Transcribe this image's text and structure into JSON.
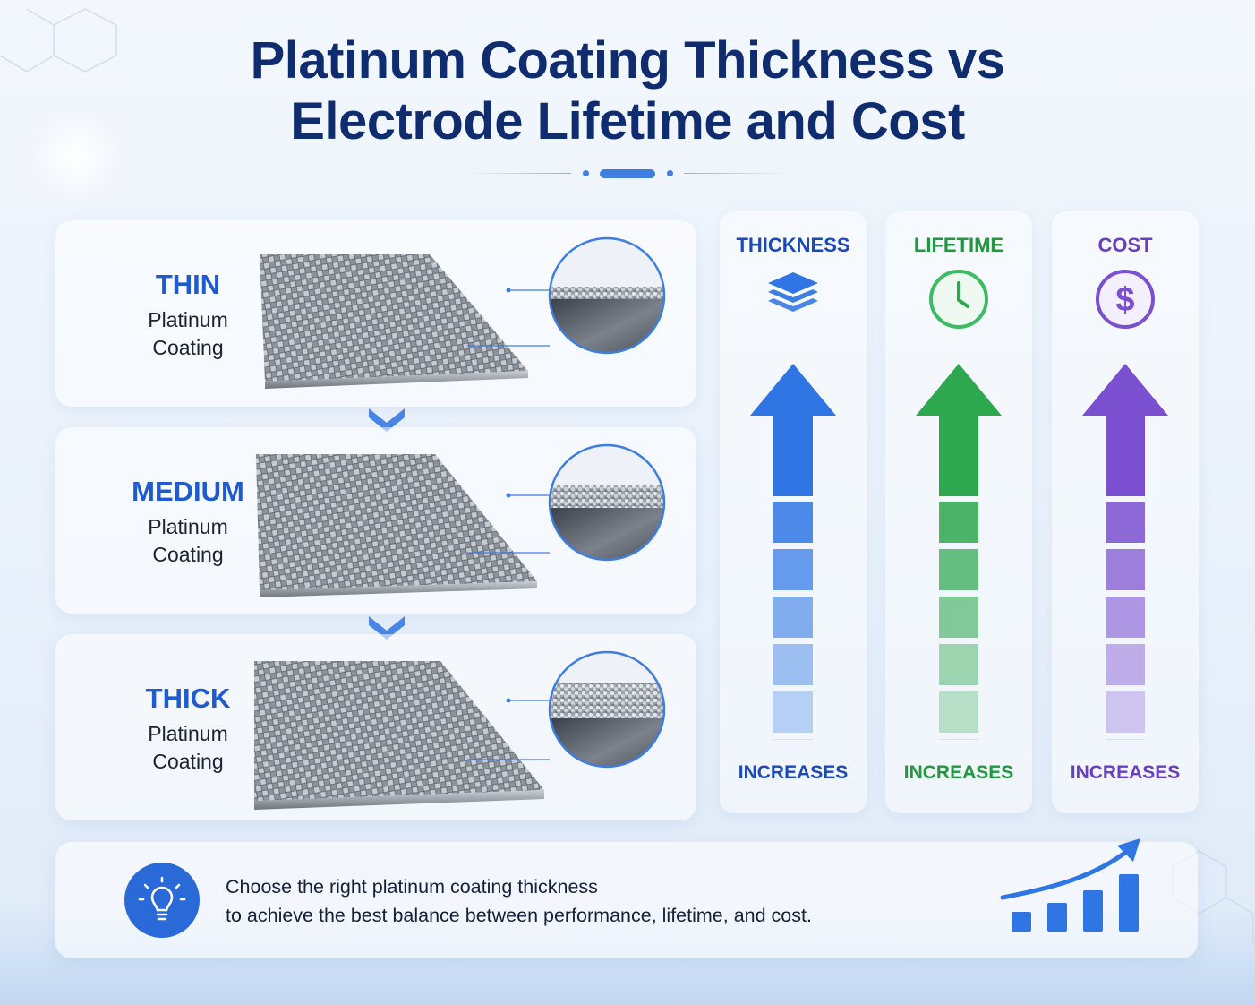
{
  "title_line1": "Platinum Coating Thickness vs",
  "title_line2": "Electrode Lifetime and Cost",
  "levels": [
    {
      "name": "THIN",
      "sub1": "Platinum",
      "sub2": "Coating",
      "coating_level": 1
    },
    {
      "name": "MEDIUM",
      "sub1": "Platinum",
      "sub2": "Coating",
      "coating_level": 2
    },
    {
      "name": "THICK",
      "sub1": "Platinum",
      "sub2": "Coating",
      "coating_level": 3
    }
  ],
  "metrics": [
    {
      "label": "THICKNESS",
      "trend": "INCREASES",
      "icon": "layers-icon",
      "color": "#2f76e4"
    },
    {
      "label": "LIFETIME",
      "trend": "INCREASES",
      "icon": "clock-icon",
      "color": "#2ea84f"
    },
    {
      "label": "COST",
      "trend": "INCREASES",
      "icon": "dollar-icon",
      "color": "#7a4fd0"
    }
  ],
  "tip": {
    "line1": "Choose the right platinum coating thickness",
    "line2": "to achieve the best balance between performance, lifetime, and cost.",
    "icon": "lightbulb-icon"
  },
  "growth_icon": "growth-chart-icon"
}
